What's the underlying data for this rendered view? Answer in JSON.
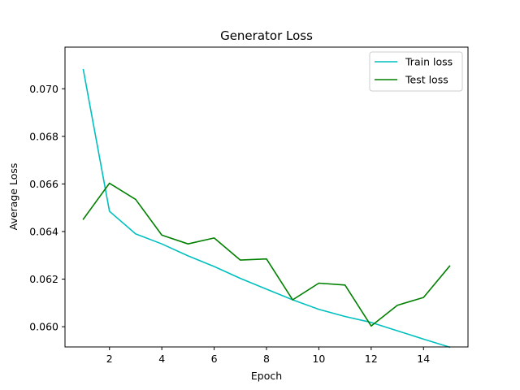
{
  "chart_data": {
    "type": "line",
    "title": "Generator Loss",
    "xlabel": "Epoch",
    "ylabel": "Average Loss",
    "x": [
      1,
      2,
      3,
      4,
      5,
      6,
      7,
      8,
      9,
      10,
      11,
      12,
      13,
      14,
      15
    ],
    "series": [
      {
        "name": "Train loss",
        "color": "#00bfbf",
        "values": [
          0.0708,
          0.06485,
          0.0639,
          0.06348,
          0.06298,
          0.06253,
          0.06203,
          0.06158,
          0.06113,
          0.06073,
          0.06043,
          0.06018,
          0.05983,
          0.05948,
          0.05914
        ]
      },
      {
        "name": "Test loss",
        "color": "#008000",
        "values": [
          0.06452,
          0.06603,
          0.06535,
          0.06385,
          0.06348,
          0.06373,
          0.0628,
          0.06285,
          0.06113,
          0.06183,
          0.06175,
          0.06003,
          0.0609,
          0.06123,
          0.06255
        ]
      }
    ],
    "xlim": [
      0.3,
      15.7
    ],
    "ylim": [
      0.05915,
      0.07175
    ],
    "xticks": [
      2,
      4,
      6,
      8,
      10,
      12,
      14
    ],
    "xtick_labels": [
      "2",
      "4",
      "6",
      "8",
      "10",
      "12",
      "14"
    ],
    "yticks": [
      0.06,
      0.062,
      0.064,
      0.066,
      0.068,
      0.07
    ],
    "ytick_labels": [
      "0.060",
      "0.062",
      "0.064",
      "0.066",
      "0.068",
      "0.070"
    ],
    "grid": false,
    "legend_position": "top-right"
  }
}
